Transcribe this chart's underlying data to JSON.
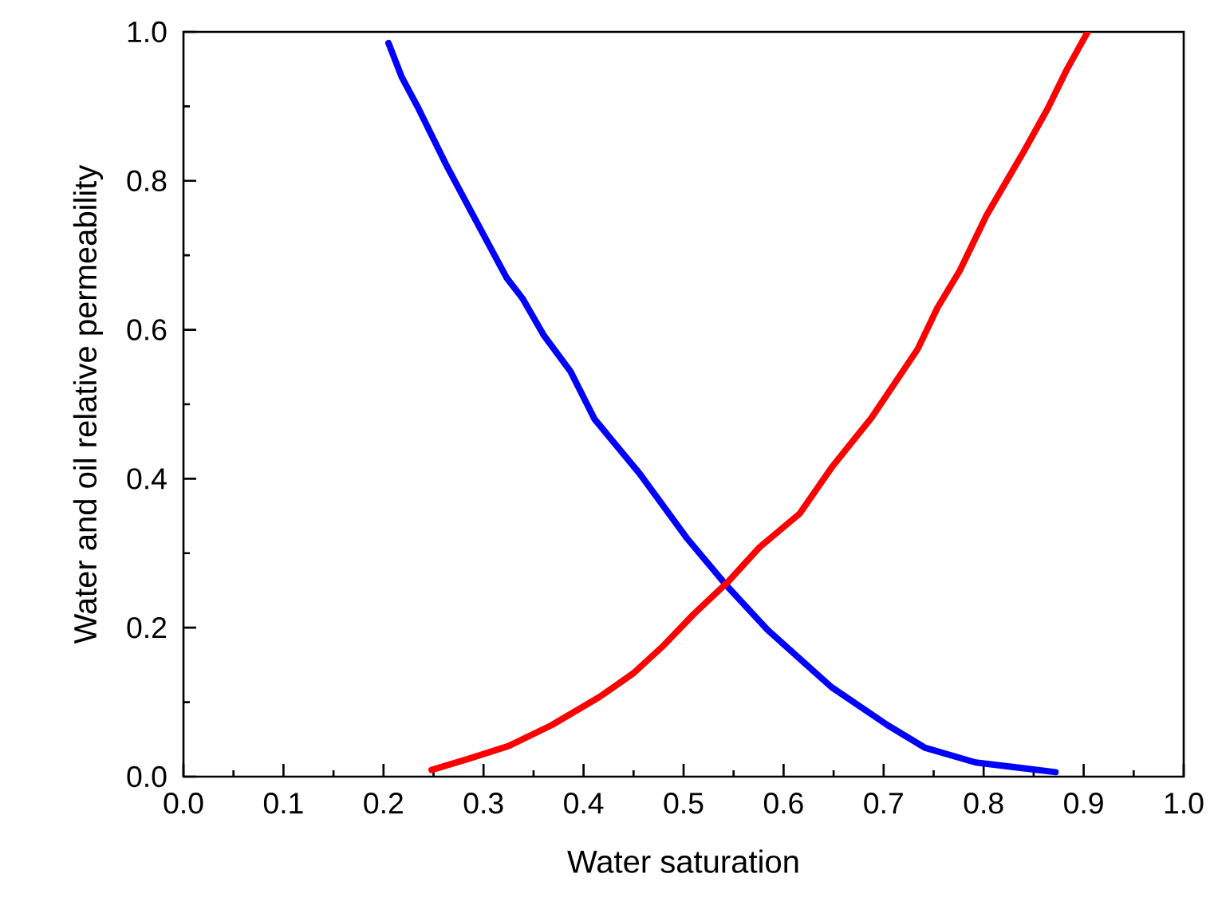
{
  "chart_data": {
    "type": "line",
    "xlabel": "Water saturation",
    "ylabel": "Water  and oil relative permeability",
    "xlim": [
      0.0,
      1.0
    ],
    "ylim": [
      0.0,
      1.0
    ],
    "xticks": [
      {
        "value": 0.0,
        "label": "0.0"
      },
      0.1,
      0.2,
      0.3,
      0.4,
      0.5,
      0.6,
      0.7,
      0.8,
      0.9,
      {
        "value": 1.0,
        "label": "1.0"
      }
    ],
    "yticks": [
      {
        "value": 0.0,
        "label": "0.0"
      },
      0.2,
      0.4,
      0.6,
      0.8,
      {
        "value": 1.0,
        "label": "1.0"
      }
    ],
    "marker": "none",
    "line_style": "solid",
    "series": [
      {
        "color": "#0000ff",
        "x": [
          0.205,
          0.218,
          0.235,
          0.264,
          0.299,
          0.323,
          0.339,
          0.36,
          0.387,
          0.411,
          0.456,
          0.504,
          0.544,
          0.584,
          0.648,
          0.704,
          0.741,
          0.792,
          0.872
        ],
        "values": [
          0.985,
          0.94,
          0.897,
          0.818,
          0.73,
          0.67,
          0.642,
          0.593,
          0.544,
          0.48,
          0.407,
          0.319,
          0.255,
          0.197,
          0.12,
          0.069,
          0.039,
          0.019,
          0.006
        ]
      },
      {
        "color": "#ff0000",
        "x": [
          0.248,
          0.285,
          0.325,
          0.368,
          0.416,
          0.45,
          0.48,
          0.51,
          0.544,
          0.576,
          0.616,
          0.648,
          0.688,
          0.734,
          0.754,
          0.776,
          0.803,
          0.84,
          0.864,
          0.883,
          0.904
        ],
        "values": [
          0.009,
          0.024,
          0.041,
          0.069,
          0.107,
          0.139,
          0.176,
          0.218,
          0.261,
          0.308,
          0.353,
          0.415,
          0.482,
          0.574,
          0.63,
          0.679,
          0.754,
          0.839,
          0.897,
          0.949,
          1.0
        ]
      }
    ]
  }
}
